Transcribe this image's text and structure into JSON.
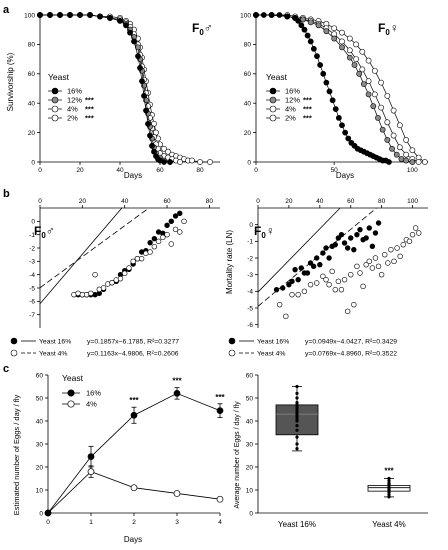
{
  "panel_labels": {
    "a": "a",
    "b": "b",
    "c": "c"
  },
  "colors": {
    "black": "#000000",
    "dark_gray": "#333333",
    "gray": "#8a8a8a",
    "light_gray": "#cfcfcf",
    "white": "#ffffff",
    "box_16": "#555555"
  },
  "chart_data": [
    {
      "type": "line",
      "title": "F0 ♂",
      "title_main": "F",
      "title_sub": "0",
      "title_sym": "♂",
      "xlabel": "Days",
      "ylabel": "Survivorship (%)",
      "xlim": [
        0,
        90
      ],
      "ylim": [
        0,
        100
      ],
      "xticks": [
        "0",
        "20",
        "40",
        "60",
        "80"
      ],
      "yticks": [
        "0",
        "20",
        "40",
        "60",
        "80",
        "100"
      ],
      "legend_title": "Yeast",
      "legend_position": "left",
      "series": [
        {
          "name": "16%",
          "sig": "",
          "fill": "#000000",
          "x": [
            0,
            5,
            10,
            15,
            20,
            25,
            30,
            35,
            40,
            43,
            45,
            47,
            49,
            50,
            51,
            52,
            53,
            54,
            55,
            56,
            57,
            58,
            59,
            60,
            62,
            65
          ],
          "y": [
            100,
            100,
            100,
            100,
            100,
            100,
            99,
            98,
            96,
            93,
            88,
            82,
            72,
            64,
            55,
            45,
            35,
            26,
            18,
            11,
            7,
            4,
            2,
            1,
            0,
            0
          ]
        },
        {
          "name": "12%",
          "sig": "***",
          "fill": "#8a8a8a",
          "x": [
            0,
            5,
            10,
            15,
            20,
            25,
            30,
            35,
            40,
            43,
            45,
            47,
            49,
            50,
            51,
            52,
            53,
            54,
            55,
            56,
            57,
            58,
            60,
            62,
            65
          ],
          "y": [
            100,
            100,
            100,
            100,
            100,
            100,
            99,
            98,
            96,
            94,
            90,
            85,
            78,
            70,
            62,
            52,
            42,
            33,
            24,
            16,
            10,
            6,
            3,
            1,
            0
          ]
        },
        {
          "name": "4%",
          "sig": "***",
          "fill": "#ffffff",
          "x": [
            0,
            5,
            10,
            15,
            20,
            25,
            30,
            35,
            40,
            43,
            45,
            47,
            49,
            50,
            51,
            52,
            53,
            54,
            55,
            56,
            57,
            58,
            59,
            60,
            62,
            64,
            66,
            68,
            70
          ],
          "y": [
            100,
            100,
            100,
            100,
            100,
            100,
            99,
            98,
            97,
            95,
            92,
            87,
            80,
            73,
            65,
            56,
            47,
            38,
            30,
            23,
            17,
            12,
            9,
            6,
            4,
            3,
            2,
            1,
            0
          ]
        },
        {
          "name": "2%",
          "sig": "***",
          "fill": "#ffffff",
          "x": [
            0,
            5,
            10,
            15,
            20,
            25,
            30,
            35,
            40,
            43,
            45,
            47,
            49,
            50,
            51,
            52,
            53,
            54,
            55,
            56,
            57,
            58,
            59,
            60,
            62,
            64,
            66,
            68,
            70,
            72,
            74,
            76,
            80,
            85
          ],
          "y": [
            100,
            100,
            100,
            100,
            100,
            100,
            99,
            99,
            98,
            96,
            94,
            90,
            84,
            78,
            71,
            63,
            55,
            47,
            39,
            32,
            26,
            20,
            16,
            12,
            9,
            7,
            5,
            4,
            3,
            2,
            1,
            1,
            0,
            0
          ]
        }
      ]
    },
    {
      "type": "line",
      "title": "F0 ♀",
      "title_main": "F",
      "title_sub": "0",
      "title_sym": "♀",
      "xlabel": "Days",
      "ylabel": "",
      "xlim": [
        0,
        110
      ],
      "ylim": [
        0,
        100
      ],
      "xticks": [
        "0",
        "50",
        "100"
      ],
      "yticks": [
        "0",
        "20",
        "40",
        "60",
        "80",
        "100"
      ],
      "legend_title": "Yeast",
      "legend_position": "left",
      "series": [
        {
          "name": "16%",
          "sig": "",
          "fill": "#000000",
          "x": [
            0,
            5,
            10,
            15,
            20,
            25,
            27,
            29,
            31,
            33,
            35,
            37,
            39,
            41,
            43,
            45,
            47,
            49,
            51,
            53,
            55,
            57,
            59,
            61,
            63,
            65,
            67,
            69,
            71,
            73,
            75,
            77,
            79,
            81,
            83,
            85
          ],
          "y": [
            100,
            100,
            100,
            100,
            99,
            98,
            96,
            93,
            90,
            86,
            82,
            77,
            72,
            66,
            60,
            54,
            48,
            42,
            36,
            30,
            25,
            20,
            16,
            13,
            11,
            9,
            8,
            7,
            6,
            5,
            4,
            3,
            2,
            1,
            1,
            0
          ]
        },
        {
          "name": "12%",
          "sig": "***",
          "fill": "#8a8a8a",
          "x": [
            0,
            10,
            20,
            25,
            30,
            35,
            40,
            45,
            50,
            55,
            60,
            63,
            66,
            69,
            72,
            75,
            78,
            81,
            84,
            87,
            90,
            93,
            96,
            100
          ],
          "y": [
            100,
            100,
            99,
            98,
            97,
            95,
            93,
            89,
            84,
            78,
            71,
            66,
            60,
            53,
            46,
            38,
            30,
            22,
            15,
            9,
            5,
            2,
            1,
            0
          ]
        },
        {
          "name": "4%",
          "sig": "***",
          "fill": "#ffffff",
          "x": [
            0,
            10,
            20,
            25,
            30,
            35,
            40,
            45,
            50,
            55,
            60,
            64,
            68,
            72,
            76,
            80,
            84,
            88,
            92,
            96,
            100,
            104
          ],
          "y": [
            100,
            100,
            99,
            98,
            97,
            96,
            94,
            91,
            87,
            82,
            76,
            70,
            63,
            55,
            46,
            37,
            27,
            18,
            10,
            5,
            2,
            0
          ]
        },
        {
          "name": "2%",
          "sig": "***",
          "fill": "#ffffff",
          "x": [
            0,
            10,
            20,
            25,
            30,
            35,
            40,
            45,
            50,
            55,
            60,
            64,
            68,
            72,
            76,
            80,
            84,
            88,
            92,
            96,
            100,
            104,
            108
          ],
          "y": [
            100,
            100,
            100,
            99,
            98,
            97,
            96,
            94,
            91,
            88,
            84,
            80,
            75,
            69,
            62,
            54,
            45,
            35,
            25,
            15,
            8,
            3,
            0
          ]
        }
      ]
    },
    {
      "type": "scatter",
      "title": "F0 ♂",
      "title_main": "F",
      "title_sub": "0",
      "title_sym": "♂",
      "xlabel": "",
      "ylabel": "Mortality rate (LN)",
      "xlim": [
        0,
        85
      ],
      "ylim": [
        -8,
        1
      ],
      "xticks": [
        "0",
        "20",
        "40",
        "60",
        "80"
      ],
      "yticks": [
        "-7",
        "-6",
        "-5",
        "-4",
        "-3",
        "-2",
        "-1",
        "0"
      ],
      "legend_position": "bottom",
      "series": [
        {
          "name": "Yeast 16%",
          "line": "solid",
          "fill": "#000000",
          "equation": "y=0.1857x−6.1785, R²=0.3277",
          "slope": 0.1857,
          "intercept": -6.1785,
          "x": [
            18,
            20,
            22,
            24,
            26,
            28,
            30,
            34,
            36,
            38,
            40,
            42,
            44,
            46,
            48,
            50,
            52,
            54,
            56,
            58,
            60,
            62,
            64,
            66
          ],
          "y": [
            -5.5,
            -5.5,
            -5.5,
            -5.5,
            -5.5,
            -5.4,
            -5.1,
            -4.6,
            -4.5,
            -4.0,
            -3.7,
            -3.6,
            -3.2,
            -2.8,
            -2.3,
            -2.2,
            -1.6,
            -1.3,
            -0.8,
            -0.9,
            -0.3,
            0.0,
            0.4,
            0.6
          ]
        },
        {
          "name": "Yeast 4%",
          "line": "dashed",
          "fill": "#ffffff",
          "equation": "y=0.1163x−4.9806, R²=0.2606",
          "slope": 0.1163,
          "intercept": -4.9806,
          "x": [
            16,
            18,
            20,
            22,
            24,
            26,
            28,
            30,
            32,
            34,
            36,
            38,
            40,
            42,
            44,
            46,
            48,
            50,
            52,
            54,
            56,
            58,
            60,
            62,
            64,
            66,
            68
          ],
          "y": [
            -5.5,
            -5.4,
            -5.5,
            -5.5,
            -5.4,
            -4.0,
            -5.1,
            -5.0,
            -4.7,
            -4.6,
            -4.4,
            -4.3,
            -3.9,
            -3.5,
            -3.0,
            -2.8,
            -2.8,
            -2.4,
            -2.3,
            -1.9,
            -1.5,
            -1.2,
            -1.0,
            -1.7,
            -0.6,
            -0.8,
            0.0
          ]
        }
      ]
    },
    {
      "type": "scatter",
      "title": "F0 ♀",
      "title_main": "F",
      "title_sub": "0",
      "title_sym": "♀",
      "xlabel": "",
      "ylabel": "Mortality rate (LN)",
      "xlim": [
        0,
        110
      ],
      "ylim": [
        -6.2,
        1
      ],
      "xticks": [
        "0",
        "20",
        "40",
        "60",
        "80",
        "100"
      ],
      "yticks": [
        "-6",
        "-5",
        "-4",
        "-3",
        "-2",
        "-1",
        "0"
      ],
      "legend_position": "bottom",
      "series": [
        {
          "name": "Yeast 16%",
          "line": "solid",
          "fill": "#000000",
          "equation": "y=0.0949x−4.0427, R²=0.3429",
          "slope": 0.0949,
          "intercept": -4.0427,
          "x": [
            12,
            16,
            20,
            22,
            24,
            26,
            28,
            30,
            32,
            34,
            36,
            38,
            40,
            42,
            44,
            46,
            48,
            50,
            52,
            54,
            56,
            58,
            60,
            62,
            64,
            66,
            68,
            70,
            72,
            74,
            76,
            78
          ],
          "y": [
            -3.9,
            -3.8,
            -3.6,
            -3.4,
            -2.7,
            -3.3,
            -2.6,
            -2.9,
            -2.9,
            -2.3,
            -2.5,
            -2.0,
            -2.4,
            -1.7,
            -1.4,
            -2.0,
            -1.3,
            -1.2,
            -0.8,
            -0.6,
            -1.1,
            -1.4,
            -0.8,
            -1.5,
            -0.6,
            -0.3,
            -0.9,
            -0.8,
            -0.2,
            -1.3,
            -0.5,
            0.1
          ]
        },
        {
          "name": "Yeast 4%",
          "line": "dashed",
          "fill": "#ffffff",
          "equation": "y=0.0769x−4.8960, R²=0.3522",
          "slope": 0.0769,
          "intercept": -4.896,
          "x": [
            14,
            18,
            22,
            26,
            30,
            34,
            38,
            42,
            44,
            46,
            48,
            50,
            52,
            54,
            56,
            58,
            60,
            62,
            64,
            66,
            68,
            70,
            72,
            74,
            76,
            78,
            80,
            82,
            84,
            86,
            88,
            90,
            92,
            94,
            96,
            98,
            100,
            102,
            104
          ],
          "y": [
            -4.8,
            -5.5,
            -4.2,
            -4.2,
            -4.0,
            -3.6,
            -3.5,
            -3.1,
            -3.3,
            -3.6,
            -2.8,
            -3.9,
            -3.4,
            -3.9,
            -3.3,
            -5.2,
            -3.0,
            -4.8,
            -2.5,
            -2.9,
            -3.7,
            -2.4,
            -2.2,
            -2.6,
            -2.0,
            -2.5,
            -3.0,
            -1.8,
            -2.3,
            -1.5,
            -2.2,
            -1.4,
            -1.9,
            -1.2,
            -0.9,
            -1.0,
            -0.6,
            -0.2,
            -0.5
          ]
        }
      ]
    },
    {
      "type": "line",
      "title": "",
      "xlabel": "Days",
      "ylabel": "Estimated number of Eggs / day / fly",
      "xlim": [
        0,
        4
      ],
      "ylim": [
        0,
        60
      ],
      "xticks": [
        "0",
        "1",
        "2",
        "3",
        "4"
      ],
      "yticks": [
        "0",
        "10",
        "20",
        "30",
        "40",
        "50",
        "60"
      ],
      "legend_title": "Yeast",
      "legend_position": "top-left",
      "significance": [
        {
          "x": 2,
          "label": "***"
        },
        {
          "x": 3,
          "label": "***"
        },
        {
          "x": 4,
          "label": "***"
        }
      ],
      "series": [
        {
          "name": "16%",
          "fill": "#000000",
          "x": [
            0,
            1,
            2,
            3,
            4
          ],
          "y": [
            0,
            24.5,
            42.5,
            52.0,
            44.5
          ],
          "err": [
            0,
            4.5,
            3.5,
            2.5,
            3.0
          ]
        },
        {
          "name": "4%",
          "fill": "#ffffff",
          "x": [
            0,
            1,
            2,
            3,
            4
          ],
          "y": [
            0,
            18.0,
            11.0,
            8.5,
            6.0
          ],
          "err": [
            0,
            2.5,
            0.8,
            0.6,
            0.5
          ]
        }
      ]
    },
    {
      "type": "box",
      "title": "",
      "xlabel": "",
      "ylabel": "Average number of Eggs / day / fly",
      "ylim": [
        0,
        60
      ],
      "yticks": [
        "0",
        "10",
        "20",
        "30",
        "40",
        "50",
        "60"
      ],
      "categories": [
        "Yeast 16%",
        "Yeast 4%"
      ],
      "significance": [
        {
          "category": "Yeast 4%",
          "label": "***"
        }
      ],
      "boxes": [
        {
          "name": "Yeast 16%",
          "fill": "#555555",
          "whisker_low": 27,
          "q1": 34,
          "median": 43,
          "q3": 47,
          "whisker_high": 55,
          "points": [
            28,
            30,
            33,
            36,
            38,
            40,
            41,
            42,
            43,
            44,
            45,
            46,
            47,
            48,
            50,
            52,
            55
          ]
        },
        {
          "name": "Yeast 4%",
          "fill": "#ffffff",
          "whisker_low": 7,
          "q1": 9.5,
          "median": 11,
          "q3": 12,
          "whisker_high": 15,
          "points": [
            7,
            8,
            9,
            10,
            10.5,
            11,
            11,
            12,
            12.5,
            13,
            14,
            15
          ]
        }
      ]
    }
  ]
}
